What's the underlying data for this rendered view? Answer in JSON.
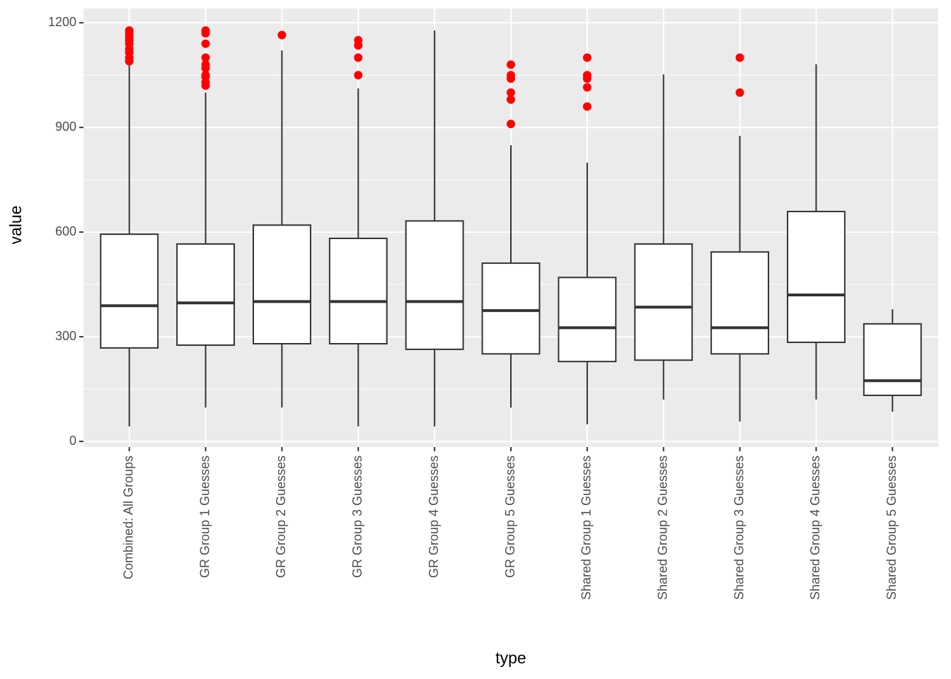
{
  "chart_data": {
    "type": "box",
    "x_label": "type",
    "y_label": "value",
    "categories": [
      "Combined: All Groups",
      "GR Group 1 Guesses",
      "GR Group 2 Guesses",
      "GR Group 3 Guesses",
      "GR Group 4 Guesses",
      "GR Group 5 Guesses",
      "Shared Group 1 Guesses",
      "Shared Group 2 Guesses",
      "Shared Group 3 Guesses",
      "Shared Group 4 Guesses",
      "Shared Group 5 Guesses"
    ],
    "boxes": [
      {
        "min": 43,
        "q1": 268,
        "median": 389,
        "q3": 594,
        "max": 1082,
        "outliers": [
          1090,
          1100,
          1115,
          1125,
          1140,
          1150,
          1160,
          1170,
          1178
        ]
      },
      {
        "min": 97,
        "q1": 276,
        "median": 397,
        "q3": 566,
        "max": 1000,
        "outliers": [
          1020,
          1030,
          1045,
          1050,
          1070,
          1080,
          1100,
          1140,
          1170,
          1178
        ]
      },
      {
        "min": 97,
        "q1": 280,
        "median": 401,
        "q3": 620,
        "max": 1121,
        "outliers": [
          1165
        ]
      },
      {
        "min": 43,
        "q1": 280,
        "median": 401,
        "q3": 582,
        "max": 1012,
        "outliers": [
          1050,
          1100,
          1135,
          1150
        ]
      },
      {
        "min": 43,
        "q1": 264,
        "median": 401,
        "q3": 632,
        "max": 1178,
        "outliers": []
      },
      {
        "min": 97,
        "q1": 251,
        "median": 375,
        "q3": 511,
        "max": 849,
        "outliers": [
          910,
          980,
          1000,
          1040,
          1050,
          1080
        ]
      },
      {
        "min": 49,
        "q1": 229,
        "median": 326,
        "q3": 470,
        "max": 799,
        "outliers": [
          960,
          1015,
          1040,
          1050,
          1100
        ]
      },
      {
        "min": 120,
        "q1": 233,
        "median": 385,
        "q3": 566,
        "max": 1052,
        "outliers": []
      },
      {
        "min": 57,
        "q1": 251,
        "median": 326,
        "q3": 543,
        "max": 876,
        "outliers": [
          1000,
          1100
        ]
      },
      {
        "min": 120,
        "q1": 284,
        "median": 420,
        "q3": 659,
        "max": 1081,
        "outliers": []
      },
      {
        "min": 85,
        "q1": 132,
        "median": 174,
        "q3": 337,
        "max": 379,
        "outliers": []
      }
    ],
    "box_color": "#ffffff",
    "line_color": "#333333",
    "outlier_color": "#ff0000",
    "ylim": [
      -16,
      1241
    ],
    "yticks": [
      0,
      300,
      600,
      900,
      1200
    ],
    "y_minor_grid": [
      150,
      450,
      750,
      1050
    ],
    "grid": true
  }
}
